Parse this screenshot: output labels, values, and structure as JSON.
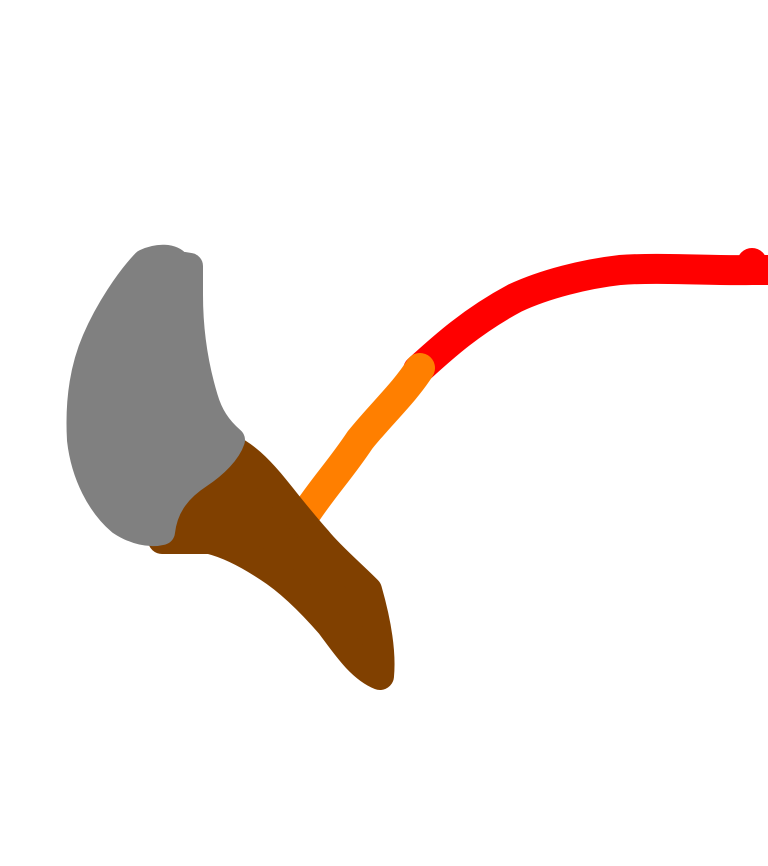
{
  "drawing": {
    "background": "#ffffff",
    "strokes": [
      {
        "name": "red-stroke",
        "color": "#ff0000"
      },
      {
        "name": "orange-stroke",
        "color": "#ff7f00"
      },
      {
        "name": "brown-stroke",
        "color": "#804000"
      },
      {
        "name": "gray-stroke",
        "color": "#808080"
      }
    ]
  }
}
